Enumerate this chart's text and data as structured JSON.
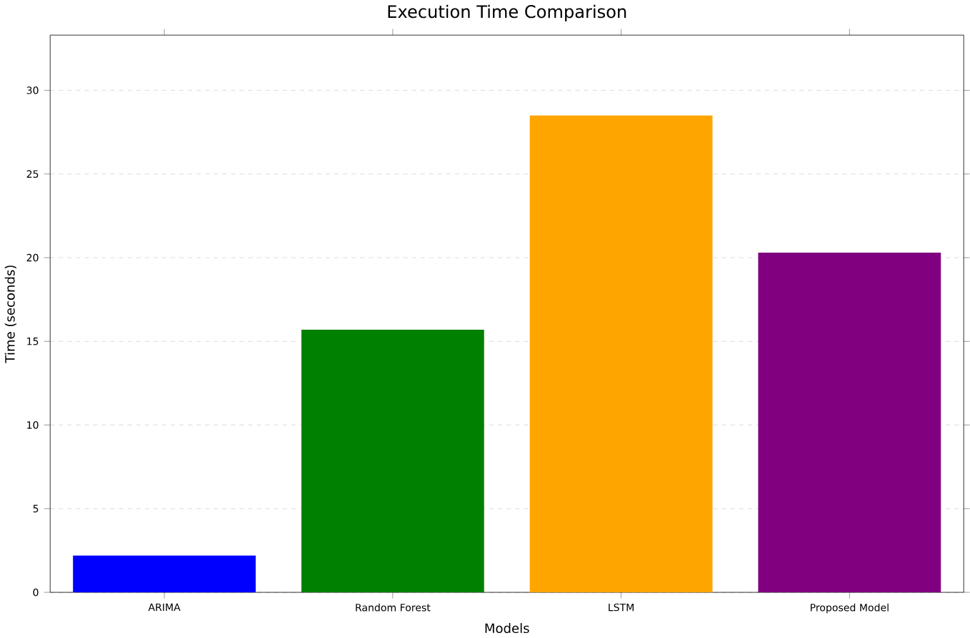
{
  "chart_data": {
    "type": "bar",
    "title": "Execution Time Comparison",
    "xlabel": "Models",
    "ylabel": "Time (seconds)",
    "categories": [
      "ARIMA",
      "Random Forest",
      "LSTM",
      "Proposed Model"
    ],
    "values": [
      2.2,
      15.7,
      28.5,
      20.3
    ],
    "colors": [
      "#0000ff",
      "#008000",
      "#ffa500",
      "#800080"
    ],
    "ylim": [
      0,
      33.3
    ],
    "yticks": [
      0,
      5,
      10,
      15,
      20,
      25,
      30
    ],
    "grid": "y"
  }
}
